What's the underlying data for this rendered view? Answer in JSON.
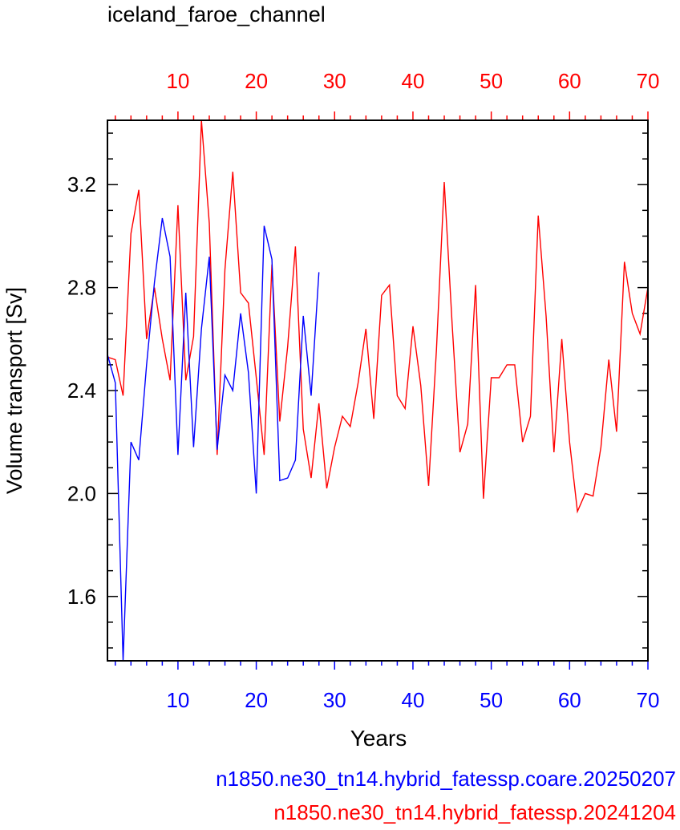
{
  "chart_data": {
    "type": "line",
    "title": "iceland_faroe_channel",
    "xlabel": "Years",
    "ylabel": "Volume transport [Sv]",
    "xlim": [
      1,
      70
    ],
    "ylim": [
      1.35,
      3.45
    ],
    "y_ticks": [
      "1.6",
      "2.0",
      "2.4",
      "2.8",
      "3.2"
    ],
    "x_ticks_bottom": [
      "10",
      "20",
      "30",
      "40",
      "50",
      "60",
      "70"
    ],
    "x_ticks_top": [
      "10",
      "20",
      "30",
      "40",
      "50",
      "60",
      "70"
    ],
    "grid": false,
    "legend_placement": "bottom-right",
    "series": [
      {
        "name": "n1850.ne30_tn14.hybrid_fatessp.coare.20250207",
        "color": "#0000ff",
        "x": [
          1,
          2,
          3,
          4,
          5,
          6,
          7,
          8,
          9,
          10,
          11,
          12,
          13,
          14,
          15,
          16,
          17,
          18,
          19,
          20,
          21,
          22,
          23,
          24,
          25,
          26,
          27,
          28
        ],
        "values": [
          2.54,
          2.43,
          1.35,
          2.2,
          2.13,
          2.5,
          2.82,
          3.07,
          2.92,
          2.15,
          2.78,
          2.18,
          2.64,
          2.92,
          2.17,
          2.46,
          2.4,
          2.7,
          2.47,
          2.0,
          3.04,
          2.91,
          2.05,
          2.06,
          2.13,
          2.69,
          2.38,
          2.86
        ]
      },
      {
        "name": "n1850.ne30_tn14.hybrid_fatessp.20241204",
        "color": "#ff0000",
        "x": [
          1,
          2,
          3,
          4,
          5,
          6,
          7,
          8,
          9,
          10,
          11,
          12,
          13,
          14,
          15,
          16,
          17,
          18,
          19,
          20,
          21,
          22,
          23,
          24,
          25,
          26,
          27,
          28,
          29,
          30,
          31,
          32,
          33,
          34,
          35,
          36,
          37,
          38,
          39,
          40,
          41,
          42,
          43,
          44,
          45,
          46,
          47,
          48,
          49,
          50,
          51,
          52,
          53,
          54,
          55,
          56,
          57,
          58,
          59,
          60,
          61,
          62,
          63,
          64,
          65,
          66,
          67,
          68,
          69,
          70
        ],
        "values": [
          2.53,
          2.52,
          2.38,
          3.01,
          3.18,
          2.6,
          2.8,
          2.6,
          2.44,
          3.12,
          2.44,
          2.61,
          3.45,
          3.05,
          2.15,
          2.87,
          3.25,
          2.78,
          2.74,
          2.45,
          2.15,
          2.89,
          2.28,
          2.57,
          2.96,
          2.25,
          2.06,
          2.35,
          2.02,
          2.18,
          2.3,
          2.26,
          2.43,
          2.64,
          2.29,
          2.77,
          2.81,
          2.38,
          2.33,
          2.65,
          2.42,
          2.03,
          2.56,
          3.21,
          2.66,
          2.16,
          2.27,
          2.81,
          1.98,
          2.45,
          2.45,
          2.5,
          2.5,
          2.2,
          2.3,
          3.08,
          2.69,
          2.16,
          2.6,
          2.2,
          1.93,
          2.0,
          1.99,
          2.18,
          2.52,
          2.24,
          2.9,
          2.7,
          2.62,
          2.8
        ]
      }
    ]
  }
}
